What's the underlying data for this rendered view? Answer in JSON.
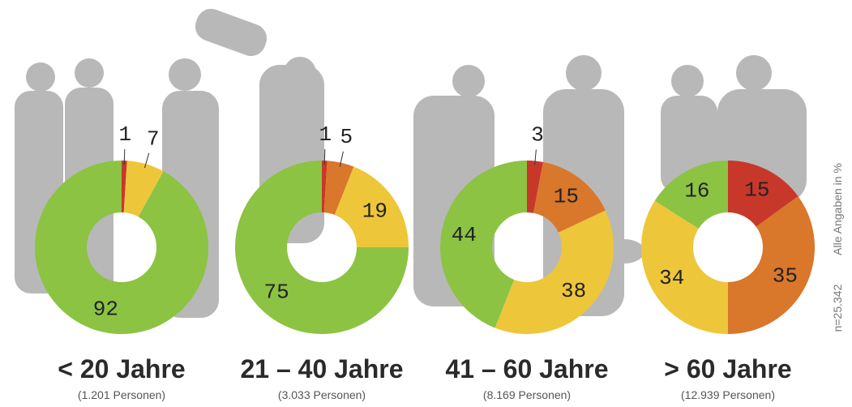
{
  "chart_data": [
    {
      "type": "pie",
      "donut": true,
      "title": "< 20 Jahre",
      "subtitle": "(1.201 Personen)",
      "values": [
        1,
        7,
        92
      ],
      "colors": [
        "#c8382a",
        "#eec63a",
        "#8cc343"
      ]
    },
    {
      "type": "pie",
      "donut": true,
      "title": "21 – 40 Jahre",
      "subtitle": "(3.033 Personen)",
      "values": [
        1,
        5,
        19,
        75
      ],
      "colors": [
        "#c8382a",
        "#d9772b",
        "#eec63a",
        "#8cc343"
      ]
    },
    {
      "type": "pie",
      "donut": true,
      "title": "41 – 60 Jahre",
      "subtitle": "(8.169 Personen)",
      "values": [
        3,
        15,
        38,
        44
      ],
      "colors": [
        "#c8382a",
        "#d9772b",
        "#eec63a",
        "#8cc343"
      ]
    },
    {
      "type": "pie",
      "donut": true,
      "title": "> 60 Jahre",
      "subtitle": "(12.939 Personen)",
      "values": [
        15,
        35,
        34,
        16
      ],
      "colors": [
        "#c8382a",
        "#d9772b",
        "#eec63a",
        "#8cc343"
      ]
    }
  ],
  "note": "Alle Angaben in %",
  "sample": "n=25.342"
}
